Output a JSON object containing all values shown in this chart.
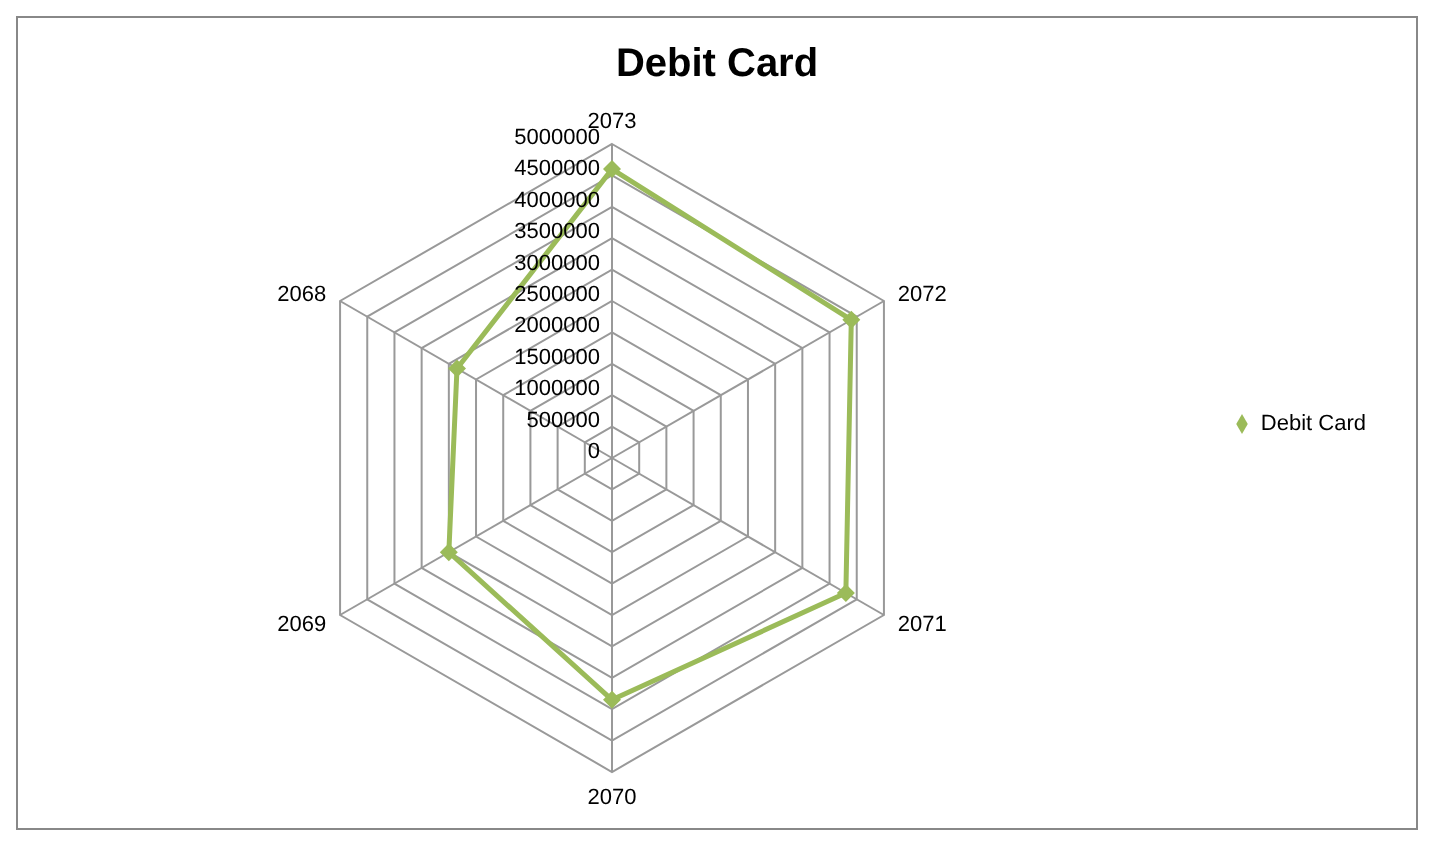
{
  "chart_data": {
    "type": "radar",
    "title": "Debit Card",
    "categories": [
      "2073",
      "2072",
      "2071",
      "2070",
      "2069",
      "2068"
    ],
    "series": [
      {
        "name": "Debit Card",
        "color": "#9bbb59",
        "values": [
          4600000,
          4400000,
          4300000,
          3850000,
          3000000,
          2850000
        ]
      }
    ],
    "ylim": [
      0,
      5000000
    ],
    "yticks": [
      0,
      500000,
      1000000,
      1500000,
      2000000,
      2500000,
      3000000,
      3500000,
      4000000,
      4500000,
      5000000
    ],
    "grid": true,
    "legend": "right",
    "marker": "diamond",
    "line_style": "solid"
  }
}
